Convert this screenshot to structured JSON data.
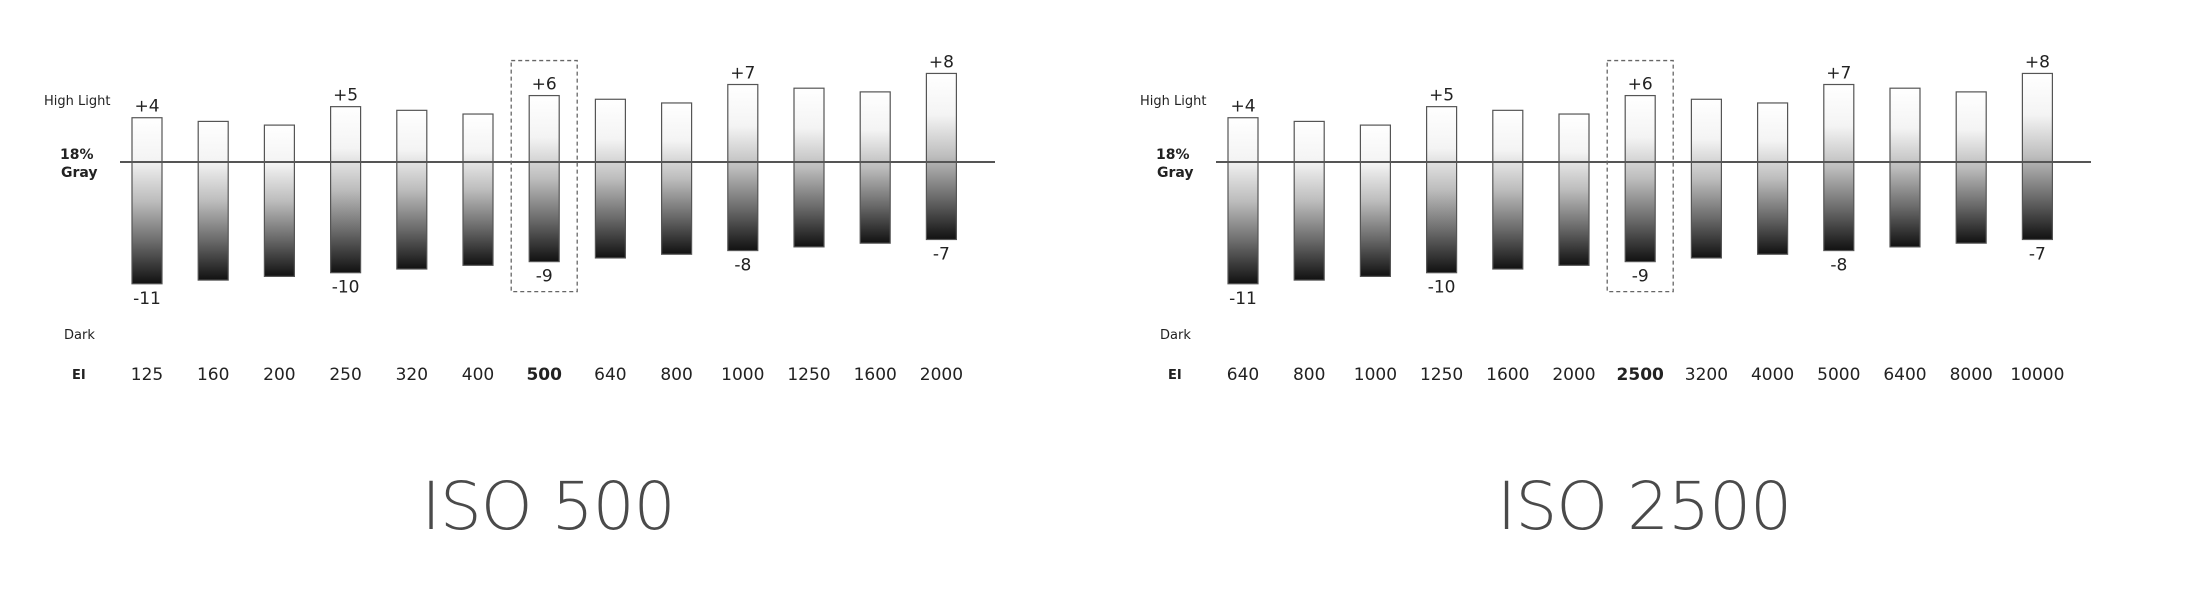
{
  "chart_data": [
    {
      "type": "bar",
      "caption": "ISO 500",
      "row_labels": {
        "highlight": "High Light",
        "gray_line1": "18%",
        "gray_line2": "Gray",
        "dark": "Dark",
        "ei": "EI"
      },
      "categories": [
        "125",
        "160",
        "200",
        "250",
        "320",
        "400",
        "500",
        "640",
        "800",
        "1000",
        "1250",
        "1600",
        "2000"
      ],
      "highlight_stops": [
        4,
        3.667,
        3.333,
        5,
        4.667,
        4.333,
        6,
        5.667,
        5.333,
        7,
        6.667,
        6.333,
        8
      ],
      "shadow_stops": [
        -11,
        -10.667,
        -10.333,
        -10,
        -9.667,
        -9.333,
        -9,
        -8.667,
        -8.333,
        -8,
        -7.667,
        -7.333,
        -7
      ],
      "highlight_labels": [
        "+4",
        "",
        "",
        "+5",
        "",
        "",
        "+6",
        "",
        "",
        "+7",
        "",
        "",
        "+8"
      ],
      "shadow_labels": [
        "-11",
        "",
        "",
        "-10",
        "",
        "",
        "-9",
        "",
        "",
        "-8",
        "",
        "",
        "-7"
      ],
      "highlighted_index": 6
    },
    {
      "type": "bar",
      "caption": "ISO 2500",
      "row_labels": {
        "highlight": "High Light",
        "gray_line1": "18%",
        "gray_line2": "Gray",
        "dark": "Dark",
        "ei": "EI"
      },
      "categories": [
        "640",
        "800",
        "1000",
        "1250",
        "1600",
        "2000",
        "2500",
        "3200",
        "4000",
        "5000",
        "6400",
        "8000",
        "10000"
      ],
      "highlight_stops": [
        4,
        3.667,
        3.333,
        5,
        4.667,
        4.333,
        6,
        5.667,
        5.333,
        7,
        6.667,
        6.333,
        8
      ],
      "shadow_stops": [
        -11,
        -10.667,
        -10.333,
        -10,
        -9.667,
        -9.333,
        -9,
        -8.667,
        -8.333,
        -8,
        -7.667,
        -7.333,
        -7
      ],
      "highlight_labels": [
        "+4",
        "",
        "",
        "+5",
        "",
        "",
        "+6",
        "",
        "",
        "+7",
        "",
        "",
        "+8"
      ],
      "shadow_labels": [
        "-11",
        "",
        "",
        "-10",
        "",
        "",
        "-9",
        "",
        "",
        "-8",
        "",
        "",
        "-7"
      ],
      "highlighted_index": 6
    }
  ]
}
